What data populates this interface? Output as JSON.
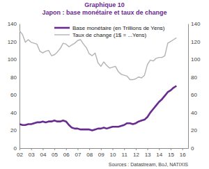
{
  "chart_data": {
    "type": "line",
    "title": "Graphique 10",
    "subtitle": "Japon : base monétaire et taux de change",
    "source": "Sources : Datastream, BoJ, NATIXIS",
    "x": [
      2002,
      2002.25,
      2002.5,
      2002.75,
      2003,
      2003.25,
      2003.5,
      2003.75,
      2004,
      2004.25,
      2004.5,
      2004.75,
      2005,
      2005.25,
      2005.5,
      2005.75,
      2006,
      2006.25,
      2006.5,
      2006.75,
      2007,
      2007.25,
      2007.5,
      2007.75,
      2008,
      2008.25,
      2008.5,
      2008.75,
      2009,
      2009.25,
      2009.5,
      2009.75,
      2010,
      2010.25,
      2010.5,
      2010.75,
      2011,
      2011.25,
      2011.5,
      2011.75,
      2012,
      2012.25,
      2012.5,
      2012.75,
      2013,
      2013.25,
      2013.5,
      2013.75,
      2014,
      2014.25,
      2014.5,
      2014.75,
      2015,
      2015.25,
      2015.5
    ],
    "series": [
      {
        "name": "Base monétaire (en Trillions de Yens)",
        "color": "#6a2b8f",
        "axis": "y",
        "values": [
          27,
          26,
          26,
          27,
          27,
          28,
          29,
          29,
          30,
          29,
          30,
          30,
          31,
          30,
          30,
          31,
          30,
          26,
          23,
          22,
          22,
          21,
          21,
          21,
          21,
          20,
          21,
          22,
          22,
          23,
          22,
          23,
          24,
          24,
          24,
          25,
          26,
          28,
          28,
          27,
          28,
          30,
          31,
          32,
          35,
          40,
          44,
          48,
          52,
          55,
          59,
          63,
          65,
          68,
          70
        ]
      },
      {
        "name": "Taux de change (1$ = ...Yens)",
        "color": "#b3b3b3",
        "axis": "y2",
        "values": [
          132,
          128,
          119,
          122,
          119,
          118,
          117,
          109,
          107,
          109,
          110,
          104,
          105,
          108,
          112,
          118,
          117,
          114,
          116,
          118,
          121,
          122,
          117,
          113,
          106,
          104,
          107,
          96,
          92,
          97,
          93,
          90,
          91,
          92,
          86,
          83,
          82,
          81,
          77,
          77,
          78,
          80,
          79,
          82,
          94,
          99,
          98,
          101,
          102,
          102,
          104,
          118,
          120,
          122,
          124
        ]
      }
    ],
    "xlim": [
      2002,
      2016.5
    ],
    "xticks": [
      {
        "value": 2002,
        "label": "02"
      },
      {
        "value": 2003,
        "label": "03"
      },
      {
        "value": 2004,
        "label": "04"
      },
      {
        "value": 2005,
        "label": "05"
      },
      {
        "value": 2006,
        "label": "06"
      },
      {
        "value": 2007,
        "label": "07"
      },
      {
        "value": 2008,
        "label": "08"
      },
      {
        "value": 2009,
        "label": "09"
      },
      {
        "value": 2010,
        "label": "10"
      },
      {
        "value": 2011,
        "label": "11"
      },
      {
        "value": 2012,
        "label": "12"
      },
      {
        "value": 2013,
        "label": "13"
      },
      {
        "value": 2014,
        "label": "14"
      },
      {
        "value": 2015,
        "label": "15"
      },
      {
        "value": 2016,
        "label": "16"
      }
    ],
    "ylim": [
      0,
      140
    ],
    "yticks": [
      0,
      20,
      40,
      60,
      80,
      100,
      120,
      140
    ],
    "y2lim": [
      0,
      140
    ],
    "y2ticks": [
      0,
      20,
      40,
      60,
      80,
      100,
      120,
      140
    ],
    "grid": false,
    "legend": "upper left"
  }
}
